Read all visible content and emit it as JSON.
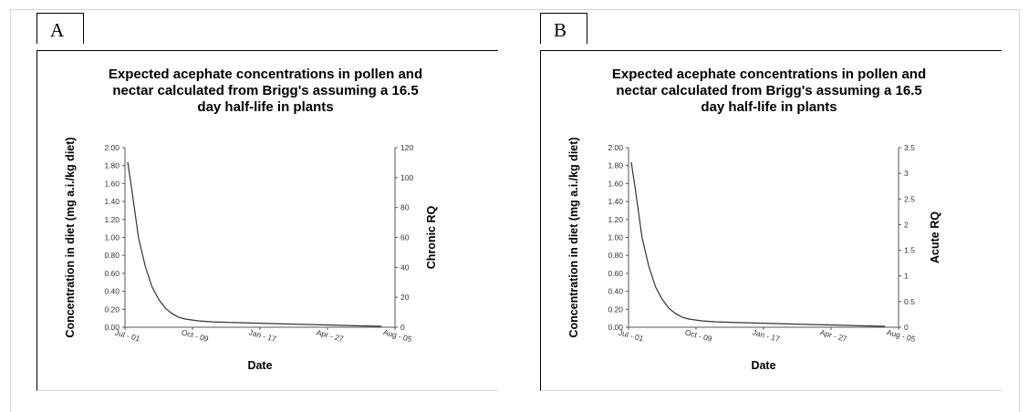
{
  "panels": [
    {
      "label": "A"
    },
    {
      "label": "B"
    }
  ],
  "chart_data": [
    {
      "type": "line",
      "title_lines": [
        "Expected acephate concentrations in pollen and",
        "nectar calculated from Brigg's assuming a 16.5",
        "day half-life in plants"
      ],
      "xlabel": "Date",
      "ylabel": "Concentration in diet (mg a.i./kg diet)",
      "y2label": "Chronic RQ",
      "x_ticks": [
        "Jul - 01",
        "Oct - 09",
        "Jan - 17",
        "Apr - 27",
        "Aug - 05"
      ],
      "y_ticks": [
        "2.00",
        "1.80",
        "1.60",
        "1.40",
        "1.20",
        "1.00",
        "0.80",
        "0.60",
        "0.40",
        "0.20",
        "0.00"
      ],
      "y2_ticks": [
        "120",
        "100",
        "80",
        "60",
        "40",
        "20",
        "0"
      ],
      "ylim": [
        0,
        2
      ],
      "y2lim": [
        0,
        120
      ],
      "xlim": [
        0,
        400
      ],
      "series": [
        {
          "x": [
            4,
            10,
            20,
            30,
            40,
            50,
            60,
            70,
            80,
            90,
            100,
            110,
            130,
            150,
            200,
            250,
            300,
            350,
            380
          ],
          "values": [
            1.84,
            1.54,
            1.0,
            0.68,
            0.45,
            0.31,
            0.21,
            0.15,
            0.11,
            0.09,
            0.08,
            0.07,
            0.06,
            0.055,
            0.045,
            0.035,
            0.025,
            0.015,
            0.01
          ]
        }
      ],
      "line_color": "#333333"
    },
    {
      "type": "line",
      "title_lines": [
        "Expected acephate concentrations in pollen and",
        "nectar calculated from Brigg's assuming a 16.5",
        "day half-life in plants"
      ],
      "xlabel": "Date",
      "ylabel": "Concentration in diet (mg a.i./kg diet)",
      "y2label": "Acute  RQ",
      "x_ticks": [
        "Jul - 01",
        "Oct - 09",
        "Jan - 17",
        "Apr - 27",
        "Aug - 05"
      ],
      "y_ticks": [
        "2.00",
        "1.80",
        "1.60",
        "1.40",
        "1.20",
        "1.00",
        "0.80",
        "0.60",
        "0.40",
        "0.20",
        "0.00"
      ],
      "y2_ticks": [
        "3.5",
        "3",
        "2.5",
        "2",
        "1.5",
        "1",
        "0.5",
        "0"
      ],
      "ylim": [
        0,
        2
      ],
      "y2lim": [
        0,
        3.5
      ],
      "xlim": [
        0,
        400
      ],
      "series": [
        {
          "x": [
            4,
            10,
            20,
            30,
            40,
            50,
            60,
            70,
            80,
            90,
            100,
            110,
            130,
            150,
            200,
            250,
            300,
            350,
            380
          ],
          "values": [
            1.84,
            1.54,
            1.0,
            0.68,
            0.45,
            0.31,
            0.21,
            0.15,
            0.11,
            0.09,
            0.08,
            0.07,
            0.06,
            0.055,
            0.045,
            0.035,
            0.025,
            0.015,
            0.01
          ]
        }
      ],
      "line_color": "#333333"
    }
  ]
}
